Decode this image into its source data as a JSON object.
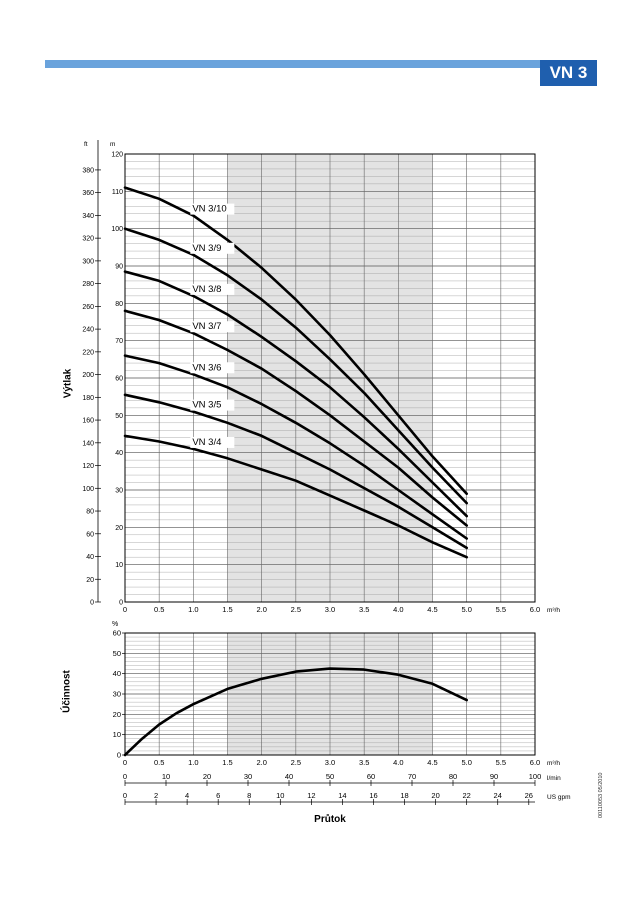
{
  "header": {
    "badge": "VN 3"
  },
  "doc_code": "00110053 05/2010",
  "chart_data": [
    {
      "type": "line",
      "ylabel": "Výtlak",
      "xlabel": "",
      "x_unit": "m³/h",
      "left_axis": {
        "unit": "ft",
        "range": [
          0,
          394
        ],
        "ticks": [
          0,
          20,
          40,
          60,
          80,
          100,
          120,
          140,
          160,
          180,
          200,
          220,
          240,
          260,
          280,
          300,
          320,
          340,
          360,
          380
        ]
      },
      "right_axis": {
        "unit": "m",
        "range": [
          0,
          120
        ],
        "ticks": [
          0,
          10,
          20,
          30,
          40,
          50,
          60,
          70,
          80,
          90,
          100,
          110,
          120
        ]
      },
      "x_ticks": [
        "0",
        "0.5",
        "1.0",
        "1.5",
        "2.0",
        "2.5",
        "3.0",
        "3.5",
        "4.0",
        "4.5",
        "5.0",
        "5.5",
        "6.0"
      ],
      "xlim": [
        0,
        6.0
      ],
      "ylim": [
        0,
        120
      ],
      "shaded_x_range": [
        1.5,
        4.5
      ],
      "grid": true,
      "series": [
        {
          "name": "VN 3/10",
          "x": [
            0,
            0.5,
            1,
            1.5,
            2,
            2.5,
            3,
            3.5,
            4,
            4.5,
            5
          ],
          "y": [
            111,
            108,
            103.5,
            97,
            89.5,
            81,
            71.5,
            61,
            50,
            39,
            29
          ]
        },
        {
          "name": "VN 3/9",
          "x": [
            0,
            0.5,
            1,
            1.5,
            2,
            2.5,
            3,
            3.5,
            4,
            4.5,
            5
          ],
          "y": [
            100,
            97,
            93,
            87.5,
            81,
            73.5,
            65,
            56,
            46,
            36,
            26.5
          ]
        },
        {
          "name": "VN 3/8",
          "x": [
            0,
            0.5,
            1,
            1.5,
            2,
            2.5,
            3,
            3.5,
            4,
            4.5,
            5
          ],
          "y": [
            88.5,
            86,
            82,
            77,
            71,
            64.5,
            57.5,
            49.5,
            41,
            32,
            23
          ]
        },
        {
          "name": "VN 3/7",
          "x": [
            0,
            0.5,
            1,
            1.5,
            2,
            2.5,
            3,
            3.5,
            4,
            4.5,
            5
          ],
          "y": [
            78,
            75.5,
            72,
            67.5,
            62.5,
            56.5,
            50,
            43,
            36,
            28,
            20.5
          ]
        },
        {
          "name": "VN 3/6",
          "x": [
            0,
            0.5,
            1,
            1.5,
            2,
            2.5,
            3,
            3.5,
            4,
            4.5,
            5
          ],
          "y": [
            66,
            64,
            61,
            57.5,
            53,
            48,
            42.5,
            36.5,
            30,
            23.5,
            17
          ]
        },
        {
          "name": "VN 3/5",
          "x": [
            0,
            0.5,
            1,
            1.5,
            2,
            2.5,
            3,
            3.5,
            4,
            4.5,
            5
          ],
          "y": [
            55.5,
            53.5,
            51,
            48,
            44.5,
            40,
            35.5,
            30.5,
            25.5,
            20,
            14.5
          ]
        },
        {
          "name": "VN 3/4",
          "x": [
            0,
            0.5,
            1,
            1.5,
            2,
            2.5,
            3,
            3.5,
            4,
            4.5,
            5
          ],
          "y": [
            44.5,
            43,
            41,
            38.5,
            35.5,
            32.5,
            28.5,
            24.5,
            20.5,
            16,
            12
          ]
        }
      ]
    },
    {
      "type": "line",
      "ylabel": "Účinnost",
      "y_unit": "%",
      "xlabel": "Průtok",
      "ylim": [
        0,
        60
      ],
      "y_ticks": [
        0,
        10,
        20,
        30,
        40,
        50,
        60
      ],
      "xlim": [
        0,
        6.0
      ],
      "shaded_x_range": [
        1.5,
        4.5
      ],
      "grid": true,
      "series": [
        {
          "x": [
            0,
            0.25,
            0.5,
            0.75,
            1,
            1.5,
            2,
            2.5,
            3,
            3.5,
            4,
            4.5,
            5
          ],
          "y": [
            0,
            8,
            15,
            20.5,
            25,
            32.5,
            37.5,
            41,
            42.5,
            42,
            39.5,
            35,
            27
          ]
        }
      ],
      "x_axes": [
        {
          "unit": "m³/h",
          "ticks": [
            "0",
            "0.5",
            "1.0",
            "1.5",
            "2.0",
            "2.5",
            "3.0",
            "3.5",
            "4.0",
            "4.5",
            "5.0",
            "5.5",
            "6.0"
          ],
          "max": 6.0
        },
        {
          "unit": "l/min",
          "ticks": [
            "0",
            "10",
            "20",
            "30",
            "40",
            "50",
            "60",
            "70",
            "80",
            "90",
            "100"
          ],
          "max": 100
        },
        {
          "unit": "US gpm",
          "ticks": [
            "0",
            "2",
            "4",
            "6",
            "8",
            "10",
            "12",
            "14",
            "16",
            "18",
            "20",
            "22",
            "24",
            "26"
          ],
          "max": 26.4
        }
      ]
    }
  ]
}
